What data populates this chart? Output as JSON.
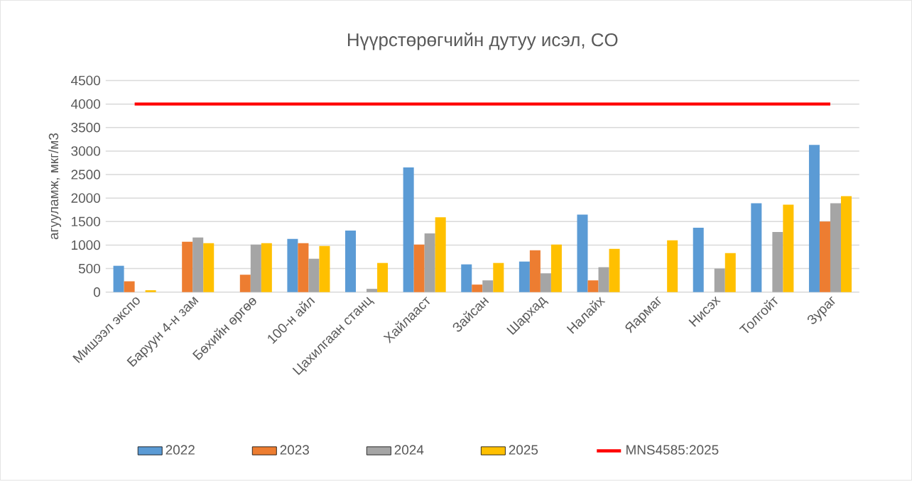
{
  "chart_data": {
    "type": "bar",
    "title": "Нүүрстөрөгчийн дутуу исэл, CO",
    "ylabel": "агууламж, мкг/м3",
    "categories": [
      "Мишээл экспо",
      "Баруун 4-н зам",
      "Бөхийн өргөө",
      "100-н айл",
      "Цахилгаан станц",
      "Хайлааст",
      "Зайсан",
      "Шархад",
      "Налайх",
      "Яармаг",
      "Нисэх",
      "Толгойт",
      "Зураг"
    ],
    "series": [
      {
        "name": "2022",
        "color": "#5b9bd5",
        "values": [
          560,
          null,
          null,
          1130,
          1310,
          2650,
          590,
          650,
          1650,
          null,
          1370,
          1890,
          3130
        ]
      },
      {
        "name": "2023",
        "color": "#ed7d31",
        "values": [
          230,
          1070,
          370,
          1040,
          null,
          1010,
          160,
          890,
          250,
          null,
          null,
          null,
          1500
        ]
      },
      {
        "name": "2024",
        "color": "#a5a5a5",
        "values": [
          null,
          1160,
          1010,
          710,
          70,
          1250,
          250,
          400,
          530,
          null,
          500,
          1280,
          1890
        ]
      },
      {
        "name": "2025",
        "color": "#ffc000",
        "values": [
          40,
          1040,
          1040,
          980,
          620,
          1590,
          620,
          1010,
          920,
          1100,
          830,
          1860,
          2040
        ]
      },
      {
        "name": "MNS4585:2025",
        "color": "#ff0000",
        "type": "line",
        "values": [
          4000,
          4000,
          4000,
          4000,
          4000,
          4000,
          4000,
          4000,
          4000,
          4000,
          4000,
          4000,
          4000
        ]
      }
    ],
    "ylim": [
      0,
      4500
    ],
    "yticks": [
      0,
      500,
      1000,
      1500,
      2000,
      2500,
      3000,
      3500,
      4000,
      4500
    ],
    "grid": "y",
    "legend": "bottom"
  }
}
